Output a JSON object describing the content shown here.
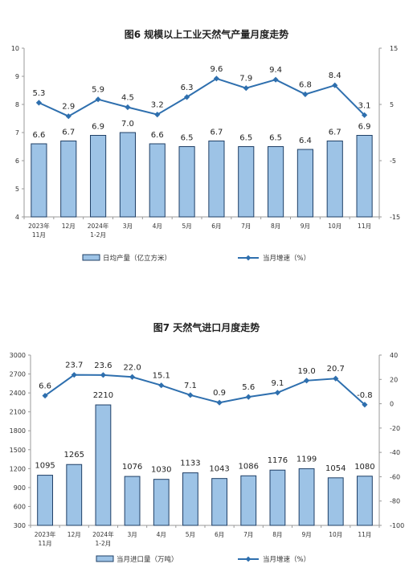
{
  "chart_data": [
    {
      "type": "bar",
      "title": "图6  规模以上工业天然气产量月度走势",
      "categories": [
        [
          "2023年",
          "11月"
        ],
        [
          "12月"
        ],
        [
          "2024年",
          "1-2月"
        ],
        [
          "3月"
        ],
        [
          "4月"
        ],
        [
          "5月"
        ],
        [
          "6月"
        ],
        [
          "7月"
        ],
        [
          "8月"
        ],
        [
          "9月"
        ],
        [
          "10月"
        ],
        [
          "11月"
        ]
      ],
      "left_axis": {
        "min": 4,
        "max": 10,
        "ticks": [
          "4",
          "5",
          "6",
          "7",
          "8",
          "9",
          "10"
        ]
      },
      "right_axis": {
        "min": -15,
        "max": 15,
        "ticks": [
          "-15",
          "-5",
          "5",
          "15"
        ]
      },
      "series": [
        {
          "name": "日均产量（亿立方米）",
          "kind": "bar",
          "axis": "left",
          "values": [
            6.6,
            6.7,
            6.9,
            7.0,
            6.6,
            6.5,
            6.7,
            6.5,
            6.5,
            6.4,
            6.7,
            6.9
          ],
          "labels": [
            "6.6",
            "6.7",
            "6.9",
            "7.0",
            "6.6",
            "6.5",
            "6.7",
            "6.5",
            "6.5",
            "6.4",
            "6.7",
            "6.9"
          ]
        },
        {
          "name": "当月增速（%）",
          "kind": "line",
          "axis": "right",
          "values": [
            5.3,
            2.9,
            5.9,
            4.5,
            3.2,
            6.3,
            9.6,
            7.9,
            9.4,
            6.8,
            8.4,
            3.1
          ],
          "labels": [
            "5.3",
            "2.9",
            "5.9",
            "4.5",
            "3.2",
            "6.3",
            "9.6",
            "7.9",
            "9.4",
            "6.8",
            "8.4",
            "3.1"
          ]
        }
      ]
    },
    {
      "type": "bar",
      "title": "图7  天然气进口月度走势",
      "categories": [
        [
          "2023年",
          "11月"
        ],
        [
          "12月"
        ],
        [
          "2024年",
          "1-2月"
        ],
        [
          "3月"
        ],
        [
          "4月"
        ],
        [
          "5月"
        ],
        [
          "6月"
        ],
        [
          "7月"
        ],
        [
          "8月"
        ],
        [
          "9月"
        ],
        [
          "10月"
        ],
        [
          "11月"
        ]
      ],
      "left_axis": {
        "min": 300,
        "max": 3000,
        "ticks": [
          "300",
          "600",
          "900",
          "1200",
          "1500",
          "1800",
          "2100",
          "2400",
          "2700",
          "3000"
        ]
      },
      "right_axis": {
        "min": -100,
        "max": 40,
        "ticks": [
          "-100",
          "-80",
          "-60",
          "-40",
          "-20",
          "0",
          "20",
          "40"
        ]
      },
      "series": [
        {
          "name": "当月进口量（万吨）",
          "kind": "bar",
          "axis": "left",
          "values": [
            1095,
            1265,
            2210,
            1076,
            1030,
            1133,
            1043,
            1086,
            1176,
            1199,
            1054,
            1080
          ],
          "labels": [
            "1095",
            "1265",
            "2210",
            "1076",
            "1030",
            "1133",
            "1043",
            "1086",
            "1176",
            "1199",
            "1054",
            "1080"
          ]
        },
        {
          "name": "当月增速（%）",
          "kind": "line",
          "axis": "right",
          "values": [
            6.6,
            23.7,
            23.6,
            22.0,
            15.1,
            7.1,
            0.9,
            5.6,
            9.1,
            19.0,
            20.7,
            -0.8
          ],
          "labels": [
            "6.6",
            "23.7",
            "23.6",
            "22.0",
            "15.1",
            "7.1",
            "0.9",
            "5.6",
            "9.1",
            "19.0",
            "20.7",
            "-0.8"
          ]
        }
      ]
    }
  ],
  "colors": {
    "bar_fill": "#9dc3e6",
    "bar_stroke": "#1f3f66",
    "line": "#2e6fae"
  }
}
